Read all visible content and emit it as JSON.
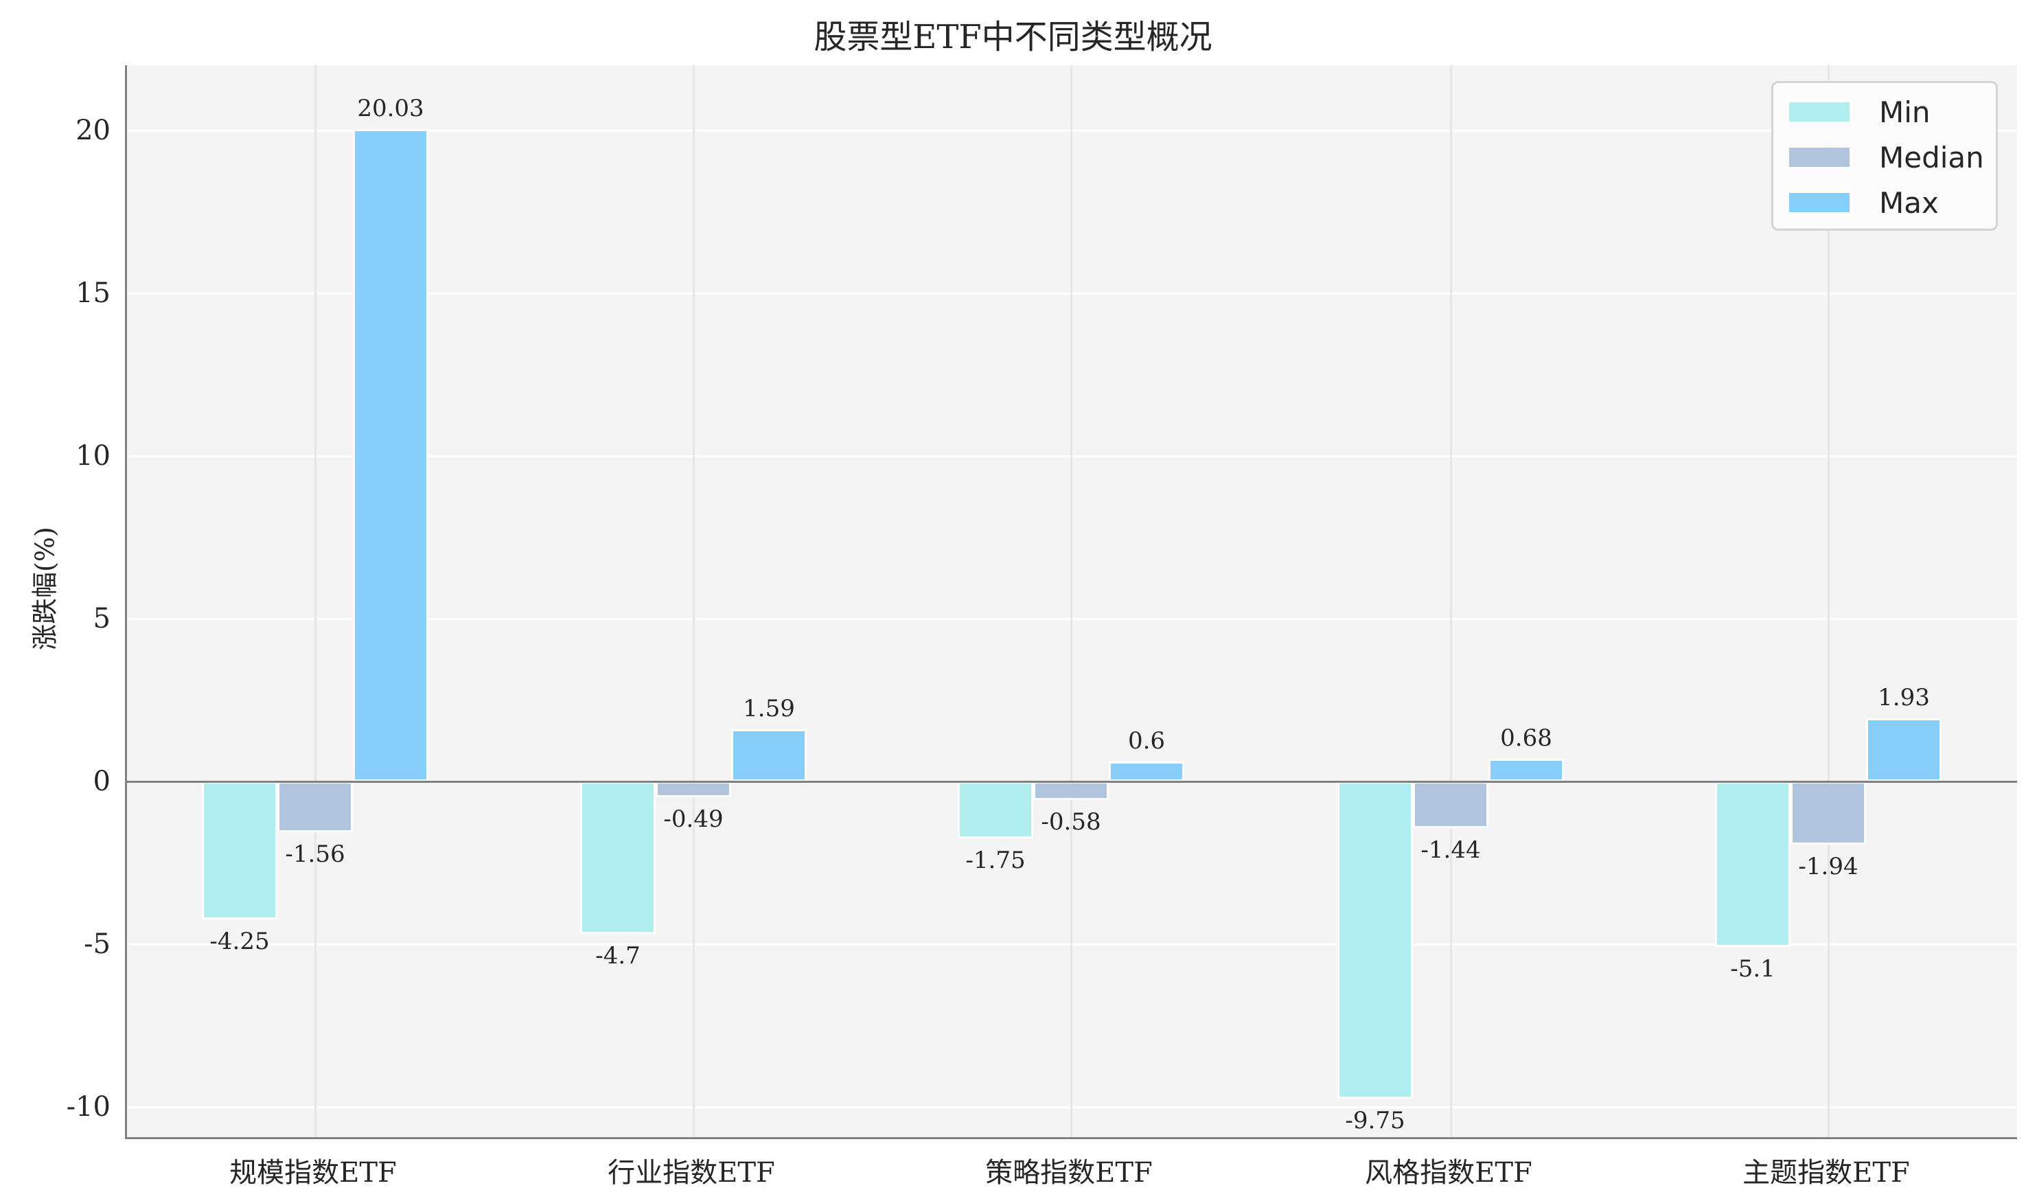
{
  "title": "股票型ETF中不同类型概况",
  "ylabel": "涨跌幅(%)",
  "yticks": [
    {
      "label": "20",
      "value": 20
    },
    {
      "label": "15",
      "value": 15
    },
    {
      "label": "10",
      "value": 10
    },
    {
      "label": "5",
      "value": 5
    },
    {
      "label": "0",
      "value": 0
    },
    {
      "label": "-5",
      "value": -5
    },
    {
      "label": "-10",
      "value": -10
    }
  ],
  "legend": [
    {
      "label": "Min",
      "color": "#afeeee"
    },
    {
      "label": "Median",
      "color": "#b0c4de"
    },
    {
      "label": "Max",
      "color": "#87cefa"
    }
  ],
  "chart_data": {
    "type": "bar",
    "title": "股票型ETF中不同类型概况",
    "xlabel": "",
    "ylabel": "涨跌幅(%)",
    "ylim": [
      -11,
      22
    ],
    "grid": true,
    "legend_position": "upper right",
    "categories": [
      "规模指数ETF",
      "行业指数ETF",
      "策略指数ETF",
      "风格指数ETF",
      "主题指数ETF"
    ],
    "series": [
      {
        "name": "Min",
        "color": "#afeeee",
        "values": [
          -4.25,
          -4.7,
          -1.75,
          -9.75,
          -5.1
        ],
        "labels": [
          "-4.25",
          "-4.7",
          "-1.75",
          "-9.75",
          "-5.1"
        ]
      },
      {
        "name": "Median",
        "color": "#b0c4de",
        "values": [
          -1.56,
          -0.49,
          -0.58,
          -1.44,
          -1.94
        ],
        "labels": [
          "-1.56",
          "-0.49",
          "-0.58",
          "-1.44",
          "-1.94"
        ]
      },
      {
        "name": "Max",
        "color": "#87cefa",
        "values": [
          20.03,
          1.59,
          0.6,
          0.68,
          1.93
        ],
        "labels": [
          "20.03",
          "1.59",
          "0.6",
          "0.68",
          "1.93"
        ]
      }
    ]
  }
}
